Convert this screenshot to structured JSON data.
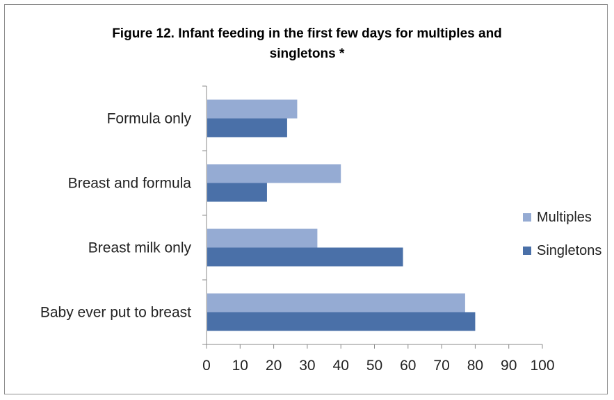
{
  "chart_data": {
    "type": "bar",
    "orientation": "horizontal",
    "title_line1": "Figure 12. Infant feeding in the first few days  for multiples and",
    "title_line2": "singletons *",
    "categories": [
      "Formula only",
      "Breast and formula",
      "Breast milk only",
      "Baby ever put to breast"
    ],
    "series": [
      {
        "name": "Multiples",
        "color": "#95abd3",
        "values": [
          27,
          40,
          33,
          77
        ]
      },
      {
        "name": "Singletons",
        "color": "#4a70a8",
        "values": [
          24,
          18,
          58.5,
          80
        ]
      }
    ],
    "xlim": [
      0,
      100
    ],
    "xticks": [
      "0",
      "10",
      "20",
      "30",
      "40",
      "50",
      "60",
      "70",
      "80",
      "90",
      "100"
    ],
    "grid": false,
    "legend_position": "right"
  }
}
